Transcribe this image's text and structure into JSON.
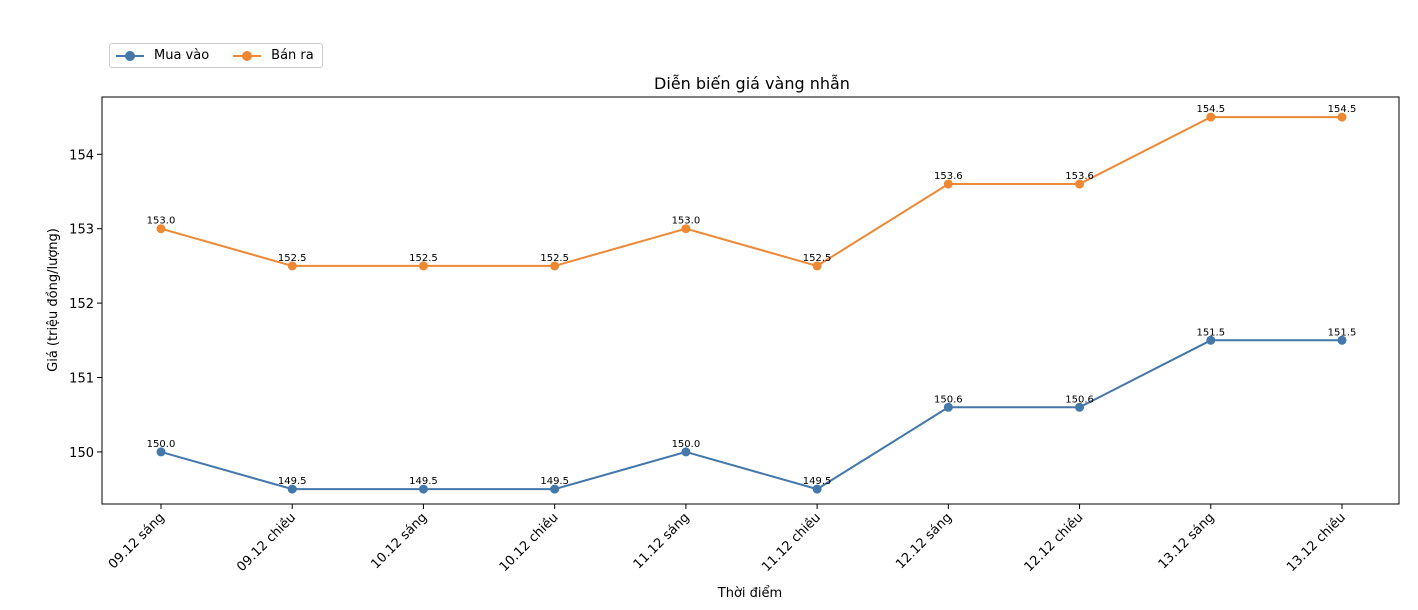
{
  "chart_data": {
    "type": "line",
    "title": "Diễn biến giá vàng nhẫn",
    "xlabel": "Thời điểm",
    "ylabel": "Giá (triệu đồng/lượng)",
    "categories": [
      "09.12 sáng",
      "09.12 chiều",
      "10.12 sáng",
      "10.12 chiều",
      "11.12 sáng",
      "11.12 chiều",
      "12.12 sáng",
      "12.12 chiều",
      "13.12 sáng",
      "13.12 chiều"
    ],
    "series": [
      {
        "name": "Mua vào",
        "color": "#4477aa",
        "values": [
          150.0,
          149.5,
          149.5,
          149.5,
          150.0,
          149.5,
          150.6,
          150.6,
          151.5,
          151.5
        ],
        "labels": [
          "150.0",
          "149.5",
          "149.5",
          "149.5",
          "150.0",
          "149.5",
          "150.6",
          "150.6",
          "151.5",
          "151.5"
        ]
      },
      {
        "name": "Bán ra",
        "color": "#ee8833",
        "values": [
          153.0,
          152.5,
          152.5,
          152.5,
          153.0,
          152.5,
          153.6,
          153.6,
          154.5,
          154.5
        ],
        "labels": [
          "153.0",
          "152.5",
          "152.5",
          "152.5",
          "153.0",
          "152.5",
          "153.6",
          "153.6",
          "154.5",
          "154.5"
        ]
      }
    ],
    "yticks": [
      150,
      151,
      152,
      153,
      154
    ],
    "ylim": [
      149.3,
      154.77
    ],
    "grid": false,
    "legend": "top-left, outside plot"
  }
}
